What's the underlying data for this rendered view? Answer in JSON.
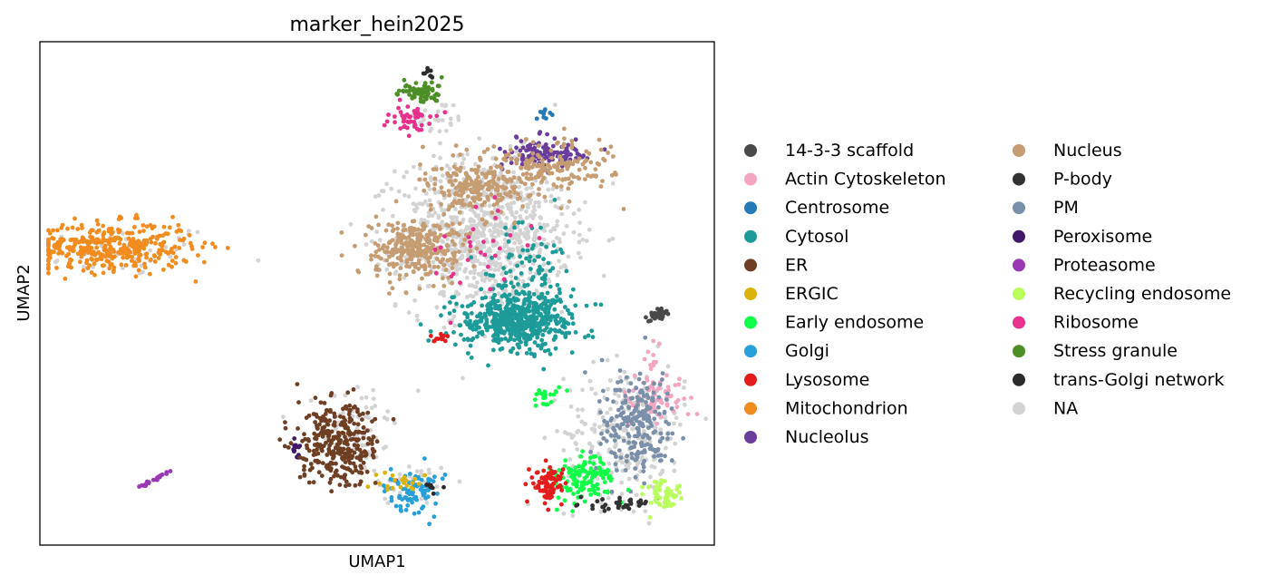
{
  "chart_data": {
    "type": "scatter",
    "title": "marker_hein2025",
    "xlabel": "UMAP1",
    "ylabel": "UMAP2",
    "xlim": [
      0,
      100
    ],
    "ylim": [
      0,
      100
    ],
    "grid": false,
    "ticks": "none",
    "legend_position": "right, outside plot, two columns",
    "legend": [
      {
        "label": "14-3-3 scaffold",
        "color": "#494949"
      },
      {
        "label": "Actin Cytoskeleton",
        "color": "#f4a5c2"
      },
      {
        "label": "Centrosome",
        "color": "#2579b6"
      },
      {
        "label": "Cytosol",
        "color": "#1d9b99"
      },
      {
        "label": "ER",
        "color": "#6f3f24"
      },
      {
        "label": "ERGIC",
        "color": "#dbb311"
      },
      {
        "label": "Early endosome",
        "color": "#11ff48"
      },
      {
        "label": "Golgi",
        "color": "#279fd9"
      },
      {
        "label": "Lysosome",
        "color": "#e31d1d"
      },
      {
        "label": "Mitochondrion",
        "color": "#f28c1f"
      },
      {
        "label": "Nucleolus",
        "color": "#6a3c9b"
      },
      {
        "label": "Nucleus",
        "color": "#c69c72"
      },
      {
        "label": "P-body",
        "color": "#323232"
      },
      {
        "label": "PM",
        "color": "#7a8fa9"
      },
      {
        "label": "Peroxisome",
        "color": "#401869"
      },
      {
        "label": "Proteasome",
        "color": "#9a38b4"
      },
      {
        "label": "Recycling endosome",
        "color": "#bafe5e"
      },
      {
        "label": "Ribosome",
        "color": "#e7318c"
      },
      {
        "label": "Stress granule",
        "color": "#4d8f27"
      },
      {
        "label": "trans-Golgi network",
        "color": "#2a2a2a"
      },
      {
        "label": "NA",
        "color": "#d3d3d3"
      }
    ],
    "clusters": [
      {
        "category": "Mitochondrion",
        "cx": 10.5,
        "cy": 59.3,
        "sx": 8.0,
        "sy": 3.2,
        "n": 380
      },
      {
        "category": "NA",
        "cx": 12.5,
        "cy": 58.5,
        "sx": 9.5,
        "sy": 3.5,
        "n": 45
      },
      {
        "category": "Proteasome",
        "cx": 17.0,
        "cy": 12.8,
        "sx": 1.2,
        "sy": 0.9,
        "n": 22
      },
      {
        "category": "Peroxisome",
        "cx": 37.9,
        "cy": 19.2,
        "sx": 0.5,
        "sy": 1.8,
        "n": 14
      },
      {
        "category": "ER",
        "cx": 44.2,
        "cy": 20.0,
        "sx": 4.0,
        "sy": 5.5,
        "n": 320
      },
      {
        "category": "NA",
        "cx": 47.5,
        "cy": 23.0,
        "sx": 3.8,
        "sy": 6.5,
        "n": 60
      },
      {
        "category": "Golgi",
        "cx": 55.5,
        "cy": 10.3,
        "sx": 2.6,
        "sy": 3.2,
        "n": 85
      },
      {
        "category": "ERGIC",
        "cx": 53.5,
        "cy": 12.5,
        "sx": 2.5,
        "sy": 1.4,
        "n": 22
      },
      {
        "category": "trans-Golgi network",
        "cx": 58.5,
        "cy": 11.5,
        "sx": 1.2,
        "sy": 0.9,
        "n": 8
      },
      {
        "category": "NA",
        "cx": 55.0,
        "cy": 12.0,
        "sx": 4.2,
        "sy": 3.0,
        "n": 40
      },
      {
        "category": "Stress granule",
        "cx": 56.5,
        "cy": 90.3,
        "sx": 2.3,
        "sy": 1.5,
        "n": 75
      },
      {
        "category": "trans-Golgi network",
        "cx": 57.6,
        "cy": 94.5,
        "sx": 0.6,
        "sy": 1.0,
        "n": 8
      },
      {
        "category": "Ribosome",
        "cx": 55.3,
        "cy": 84.9,
        "sx": 2.2,
        "sy": 1.4,
        "n": 50
      },
      {
        "category": "NA",
        "cx": 59.0,
        "cy": 85.0,
        "sx": 3.0,
        "sy": 2.5,
        "n": 30
      },
      {
        "category": "Centrosome",
        "cx": 74.8,
        "cy": 85.8,
        "sx": 0.8,
        "sy": 1.0,
        "n": 10
      },
      {
        "category": "Nucleolus",
        "cx": 74.5,
        "cy": 77.9,
        "sx": 4.5,
        "sy": 2.3,
        "n": 110
      },
      {
        "category": "Nucleus",
        "cx": 76.0,
        "cy": 75.0,
        "sx": 6.0,
        "sy": 3.5,
        "n": 170
      },
      {
        "category": "Nucleus",
        "cx": 64.5,
        "cy": 71.3,
        "sx": 5.0,
        "sy": 4.5,
        "n": 210
      },
      {
        "category": "Nucleus",
        "cx": 55.5,
        "cy": 59.0,
        "sx": 4.2,
        "sy": 4.0,
        "n": 300
      },
      {
        "category": "NA",
        "cx": 66.0,
        "cy": 62.0,
        "sx": 8.5,
        "sy": 10.0,
        "n": 900
      },
      {
        "category": "Cytosol",
        "cx": 71.0,
        "cy": 44.6,
        "sx": 5.5,
        "sy": 3.6,
        "n": 560
      },
      {
        "category": "Cytosol",
        "cx": 72.0,
        "cy": 55.0,
        "sx": 4.0,
        "sy": 6.0,
        "n": 90
      },
      {
        "category": "Ribosome",
        "cx": 66.0,
        "cy": 60.0,
        "sx": 5.0,
        "sy": 8.0,
        "n": 30
      },
      {
        "category": "14-3-3 scaffold",
        "cx": 91.8,
        "cy": 45.7,
        "sx": 1.0,
        "sy": 0.8,
        "n": 38
      },
      {
        "category": "Actin Cytoskeleton",
        "cx": 91.5,
        "cy": 29.0,
        "sx": 3.0,
        "sy": 3.0,
        "n": 70
      },
      {
        "category": "Actin Cytoskeleton",
        "cx": 91.0,
        "cy": 36.5,
        "sx": 0.6,
        "sy": 1.8,
        "n": 12
      },
      {
        "category": "PM",
        "cx": 88.5,
        "cy": 24.0,
        "sx": 3.5,
        "sy": 7.0,
        "n": 230
      },
      {
        "category": "NA",
        "cx": 87.0,
        "cy": 22.0,
        "sx": 6.0,
        "sy": 9.0,
        "n": 260
      },
      {
        "category": "Early endosome",
        "cx": 81.0,
        "cy": 12.8,
        "sx": 2.8,
        "sy": 3.2,
        "n": 130
      },
      {
        "category": "Early endosome",
        "cx": 75.5,
        "cy": 29.5,
        "sx": 1.5,
        "sy": 1.5,
        "n": 20
      },
      {
        "category": "Lysosome",
        "cx": 75.7,
        "cy": 12.2,
        "sx": 1.6,
        "sy": 2.5,
        "n": 85
      },
      {
        "category": "Lysosome",
        "cx": 59.5,
        "cy": 41.0,
        "sx": 1.0,
        "sy": 1.0,
        "n": 12
      },
      {
        "category": "P-body",
        "cx": 86.0,
        "cy": 7.8,
        "sx": 3.0,
        "sy": 0.9,
        "n": 35
      },
      {
        "category": "Recycling endosome",
        "cx": 92.8,
        "cy": 9.6,
        "sx": 1.6,
        "sy": 2.0,
        "n": 60
      }
    ]
  }
}
